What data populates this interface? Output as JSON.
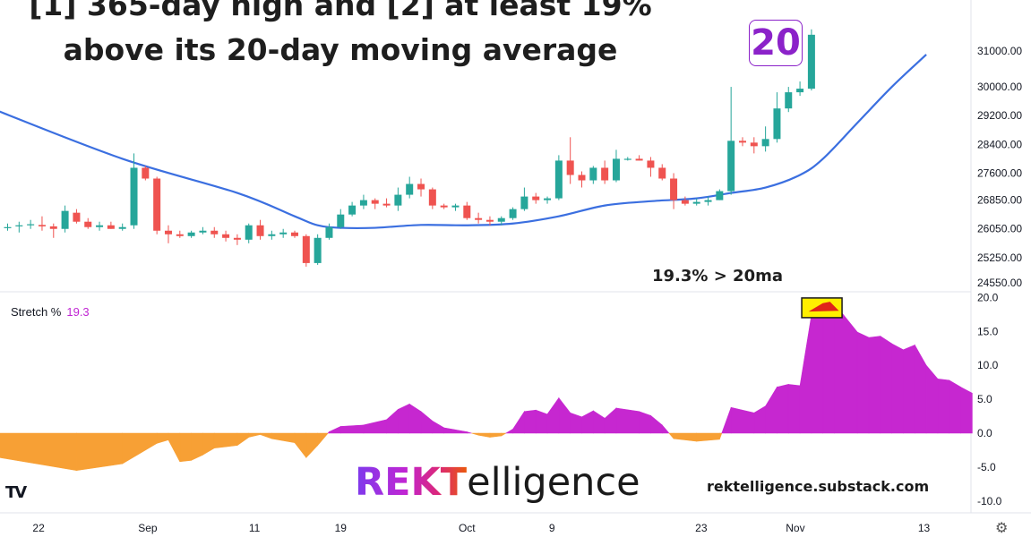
{
  "title_line1": "[1] 365-day high and [2] at least 19%",
  "title_line2": "above its 20-day moving average",
  "badge_text": "20",
  "annotation": "19.3% > 20ma",
  "indicator": {
    "name": "Stretch %",
    "value": "19.3"
  },
  "brand": {
    "rekt": "REKT",
    "rest": "elligence"
  },
  "site": "rektelligence.substack.com",
  "tv_logo": "TV",
  "settings_icon": "gear-icon",
  "colors": {
    "up": "#26a69a",
    "down": "#ef5350",
    "ma": "#3b6fe0",
    "stretch_pos": "#c627d0",
    "stretch_neg": "#f7a035",
    "highlight": "#ffef00"
  },
  "chart_data": [
    {
      "type": "candlestick",
      "title": "",
      "series": [
        {
          "name": ""
        }
      ],
      "y_ticks": [
        "31000.00",
        "30000.00",
        "29200.00",
        "28400.00",
        "27600.00",
        "26850.00",
        "26050.00",
        "25250.00",
        "24550.00"
      ],
      "x_ticks": [
        "22",
        "Sep",
        "11",
        "19",
        "Oct",
        "9",
        "23",
        "Nov",
        "13"
      ],
      "ohlc": [
        [
          26100,
          26200,
          26000,
          26100
        ],
        [
          26120,
          26250,
          25950,
          26150
        ],
        [
          26150,
          26300,
          26050,
          26180
        ],
        [
          26160,
          26400,
          26000,
          26120
        ],
        [
          26120,
          26200,
          25800,
          26050
        ],
        [
          26050,
          26700,
          25950,
          26550
        ],
        [
          26500,
          26600,
          26200,
          26250
        ],
        [
          26250,
          26350,
          26050,
          26100
        ],
        [
          26100,
          26250,
          26000,
          26150
        ],
        [
          26150,
          26250,
          26050,
          26050
        ],
        [
          26050,
          26200,
          26000,
          26100
        ],
        [
          26150,
          28150,
          26050,
          27750
        ],
        [
          27750,
          27800,
          27400,
          27450
        ],
        [
          27450,
          27500,
          25900,
          26000
        ],
        [
          26000,
          26150,
          25650,
          25900
        ],
        [
          25900,
          26000,
          25800,
          25850
        ],
        [
          25850,
          26000,
          25800,
          25950
        ],
        [
          25950,
          26100,
          25900,
          26000
        ],
        [
          26000,
          26100,
          25800,
          25900
        ],
        [
          25900,
          26000,
          25700,
          25800
        ],
        [
          25800,
          25900,
          25600,
          25750
        ],
        [
          25750,
          26200,
          25650,
          26150
        ],
        [
          26150,
          26300,
          25750,
          25850
        ],
        [
          25850,
          26000,
          25750,
          25900
        ],
        [
          25900,
          26050,
          25800,
          25950
        ],
        [
          25950,
          26000,
          25800,
          25850
        ],
        [
          25850,
          25900,
          25000,
          25100
        ],
        [
          25100,
          25900,
          25050,
          25800
        ],
        [
          25800,
          26200,
          25750,
          26100
        ],
        [
          26100,
          26600,
          26050,
          26450
        ],
        [
          26450,
          26800,
          26400,
          26700
        ],
        [
          26700,
          27000,
          26600,
          26850
        ],
        [
          26850,
          26900,
          26600,
          26750
        ],
        [
          26750,
          26900,
          26650,
          26700
        ],
        [
          26700,
          27200,
          26550,
          27000
        ],
        [
          27000,
          27500,
          26900,
          27300
        ],
        [
          27300,
          27450,
          26950,
          27150
        ],
        [
          27150,
          27200,
          26600,
          26700
        ],
        [
          26700,
          26750,
          26600,
          26650
        ],
        [
          26650,
          26750,
          26550,
          26700
        ],
        [
          26700,
          26800,
          26300,
          26350
        ],
        [
          26350,
          26500,
          26200,
          26300
        ],
        [
          26300,
          26400,
          26150,
          26250
        ],
        [
          26250,
          26400,
          26150,
          26350
        ],
        [
          26350,
          26650,
          26300,
          26600
        ],
        [
          26600,
          27200,
          26550,
          26950
        ],
        [
          26950,
          27050,
          26750,
          26850
        ],
        [
          26850,
          26950,
          26750,
          26900
        ],
        [
          26900,
          28100,
          26850,
          27950
        ],
        [
          27950,
          28600,
          27300,
          27550
        ],
        [
          27550,
          27650,
          27200,
          27400
        ],
        [
          27400,
          27800,
          27300,
          27750
        ],
        [
          27750,
          27950,
          27300,
          27400
        ],
        [
          27400,
          28250,
          27350,
          28000
        ],
        [
          28000,
          28050,
          27950,
          28000
        ],
        [
          28000,
          28100,
          27950,
          27950
        ],
        [
          27950,
          28050,
          27500,
          27750
        ],
        [
          27750,
          27850,
          27400,
          27450
        ],
        [
          27450,
          27600,
          26600,
          26850
        ],
        [
          26850,
          26950,
          26700,
          26750
        ],
        [
          26750,
          26900,
          26700,
          26800
        ],
        [
          26800,
          26950,
          26700,
          26850
        ],
        [
          26850,
          27150,
          26850,
          27100
        ],
        [
          27100,
          30000,
          27000,
          28500
        ],
        [
          28500,
          28600,
          28350,
          28450
        ],
        [
          28450,
          28600,
          28150,
          28350
        ],
        [
          28350,
          28900,
          28200,
          28550
        ],
        [
          28550,
          29850,
          28450,
          29400
        ],
        [
          29400,
          30000,
          29300,
          29850
        ],
        [
          29850,
          30150,
          29750,
          29950
        ],
        [
          29950,
          31600,
          29900,
          31450
        ]
      ],
      "ma": [
        [
          -1,
          29350
        ],
        [
          10,
          28000
        ],
        [
          20,
          27050
        ],
        [
          25,
          26400
        ],
        [
          27,
          26150
        ],
        [
          29,
          26080
        ],
        [
          32,
          26080
        ],
        [
          36,
          26160
        ],
        [
          40,
          26150
        ],
        [
          44,
          26200
        ],
        [
          48,
          26400
        ],
        [
          52,
          26700
        ],
        [
          56,
          26820
        ],
        [
          60,
          26900
        ],
        [
          63,
          27050
        ],
        [
          66,
          27200
        ],
        [
          69,
          27550
        ],
        [
          71,
          28000
        ],
        [
          74,
          29000
        ],
        [
          77,
          30000
        ],
        [
          80,
          30900
        ]
      ],
      "ylim": [
        24400,
        31650
      ]
    },
    {
      "type": "area",
      "title": "",
      "series": [
        {
          "name": "Stretch %"
        }
      ],
      "y_ticks": [
        "20.0",
        "15.0",
        "10.0",
        "5.0",
        "0.0",
        "-5.0",
        "-10.0"
      ],
      "values": [
        [
          -1,
          -3.5
        ],
        [
          6,
          -5.5
        ],
        [
          10,
          -4.5
        ],
        [
          13,
          -1.5
        ],
        [
          14,
          -1.0
        ],
        [
          15,
          -4.2
        ],
        [
          16,
          -4.0
        ],
        [
          17,
          -3.2
        ],
        [
          18,
          -2.2
        ],
        [
          20,
          -1.8
        ],
        [
          21,
          -0.6
        ],
        [
          22,
          -0.2
        ],
        [
          23,
          -0.8
        ],
        [
          25,
          -1.4
        ],
        [
          26,
          -3.6
        ],
        [
          27,
          -1.8
        ],
        [
          28,
          0.2
        ],
        [
          29,
          1.0
        ],
        [
          31,
          1.2
        ],
        [
          33,
          2.0
        ],
        [
          34,
          3.5
        ],
        [
          35,
          4.3
        ],
        [
          36,
          3.2
        ],
        [
          37,
          1.8
        ],
        [
          38,
          0.8
        ],
        [
          40,
          0.2
        ],
        [
          41,
          -0.3
        ],
        [
          42,
          -0.6
        ],
        [
          43,
          -0.4
        ],
        [
          44,
          0.6
        ],
        [
          45,
          3.2
        ],
        [
          46,
          3.4
        ],
        [
          47,
          2.8
        ],
        [
          48,
          5.2
        ],
        [
          49,
          3.0
        ],
        [
          50,
          2.4
        ],
        [
          51,
          3.3
        ],
        [
          52,
          2.2
        ],
        [
          53,
          3.7
        ],
        [
          55,
          3.2
        ],
        [
          56,
          2.6
        ],
        [
          57,
          1.2
        ],
        [
          58,
          -0.8
        ],
        [
          60,
          -1.2
        ],
        [
          62,
          -0.9
        ],
        [
          63,
          3.8
        ],
        [
          65,
          3.0
        ],
        [
          66,
          4.0
        ],
        [
          67,
          6.8
        ],
        [
          68,
          7.2
        ],
        [
          69,
          7.0
        ],
        [
          70,
          17.4
        ],
        [
          71,
          19.3
        ],
        [
          72,
          19.1
        ],
        [
          74,
          14.9
        ],
        [
          75,
          14.1
        ],
        [
          76,
          14.3
        ],
        [
          77,
          13.2
        ],
        [
          78,
          12.3
        ],
        [
          79,
          13.0
        ],
        [
          80,
          10.0
        ],
        [
          81,
          8.0
        ],
        [
          82,
          7.8
        ],
        [
          83,
          6.8
        ],
        [
          84,
          5.9
        ]
      ],
      "ylim": [
        -12,
        21
      ]
    }
  ]
}
